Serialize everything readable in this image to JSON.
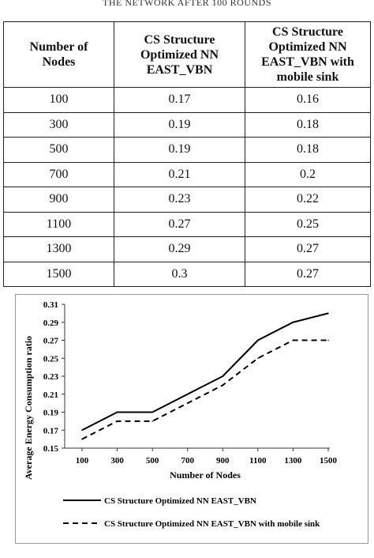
{
  "caption": "THE NETWORK AFTER 100 ROUNDS",
  "table": {
    "headers": [
      "Number of Nodes",
      "CS Structure Optimized NN EAST_VBN",
      "CS Structure Optimized NN EAST_VBN with mobile sink"
    ],
    "header_lines": [
      [
        "Number of",
        "Nodes"
      ],
      [
        "CS Structure",
        "Optimized NN",
        "EAST_VBN"
      ],
      [
        "CS Structure",
        "Optimized NN",
        "EAST_VBN with",
        "mobile sink"
      ]
    ],
    "rows": [
      [
        "100",
        "0.17",
        "0.16"
      ],
      [
        "300",
        "0.19",
        "0.18"
      ],
      [
        "500",
        "0.19",
        "0.18"
      ],
      [
        "700",
        "0.21",
        "0.2"
      ],
      [
        "900",
        "0.23",
        "0.22"
      ],
      [
        "1100",
        "0.27",
        "0.25"
      ],
      [
        "1300",
        "0.29",
        "0.27"
      ],
      [
        "1500",
        "0.3",
        "0.27"
      ]
    ]
  },
  "chart_data": {
    "type": "line",
    "categories": [
      "100",
      "300",
      "500",
      "700",
      "900",
      "1100",
      "1300",
      "1500"
    ],
    "series": [
      {
        "name": "CS Structure Optimized NN EAST_VBN",
        "values": [
          0.17,
          0.19,
          0.19,
          0.21,
          0.23,
          0.27,
          0.29,
          0.3
        ],
        "style": "solid"
      },
      {
        "name": "CS Structure Optimized NN EAST_VBN with mobile sink",
        "values": [
          0.16,
          0.18,
          0.18,
          0.2,
          0.22,
          0.25,
          0.27,
          0.27
        ],
        "style": "dashed"
      }
    ],
    "xlabel": "Number of Nodes",
    "ylabel": "Average Energy Consumption ratio",
    "ylim": [
      0.15,
      0.31
    ],
    "yticks": [
      "0.15",
      "0.17",
      "0.19",
      "0.21",
      "0.23",
      "0.25",
      "0.27",
      "0.29",
      "0.31"
    ],
    "grid": false,
    "legend_position": "bottom",
    "line_color": "#000000"
  }
}
